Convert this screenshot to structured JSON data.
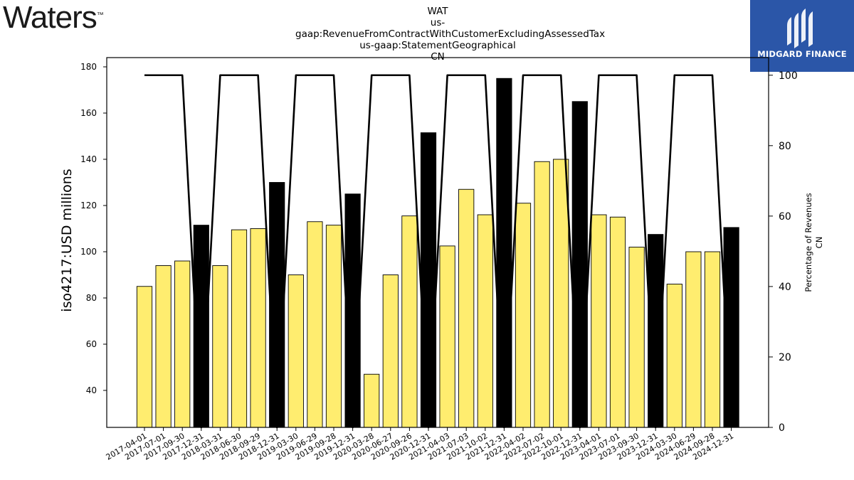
{
  "header": {
    "left_logo": "Waters",
    "left_logo_tm": "™",
    "title_lines": [
      "WAT",
      "us-gaap:RevenueFromContractWithCustomerExcludingAssessedTax",
      "us-gaap:StatementGeographical",
      "CN"
    ],
    "brand": "MIDGARD FINANCE",
    "brand_color": "#2b56a8"
  },
  "chart_data": {
    "type": "bar",
    "categories": [
      "2017-04-01",
      "2017-07-01",
      "2017-09-30",
      "2017-12-31",
      "2018-03-31",
      "2018-06-30",
      "2018-09-29",
      "2018-12-31",
      "2019-03-30",
      "2019-06-29",
      "2019-09-28",
      "2019-12-31",
      "2020-03-28",
      "2020-06-27",
      "2020-09-26",
      "2020-12-31",
      "2021-04-03",
      "2021-07-03",
      "2021-10-02",
      "2021-12-31",
      "2022-04-02",
      "2022-07-02",
      "2022-10-01",
      "2022-12-31",
      "2023-04-01",
      "2023-07-01",
      "2023-09-30",
      "2023-12-31",
      "2024-03-30",
      "2024-06-29",
      "2024-09-28",
      "2024-12-31"
    ],
    "values": [
      85,
      94,
      96,
      111.5,
      94,
      109.5,
      110,
      130,
      90,
      113,
      111.5,
      125,
      47,
      90,
      115.5,
      151.5,
      102.5,
      127,
      116,
      175,
      121,
      139,
      140,
      165,
      116,
      115,
      102,
      107.5,
      86,
      100,
      100,
      110.5
    ],
    "bar_colors": [
      "#ffed6f",
      "#ffed6f",
      "#ffed6f",
      "#000000",
      "#ffed6f",
      "#ffed6f",
      "#ffed6f",
      "#000000",
      "#ffed6f",
      "#ffed6f",
      "#ffed6f",
      "#000000",
      "#ffed6f",
      "#ffed6f",
      "#ffed6f",
      "#000000",
      "#ffed6f",
      "#ffed6f",
      "#ffed6f",
      "#000000",
      "#ffed6f",
      "#ffed6f",
      "#ffed6f",
      "#000000",
      "#ffed6f",
      "#ffed6f",
      "#ffed6f",
      "#000000",
      "#ffed6f",
      "#ffed6f",
      "#ffed6f",
      "#000000"
    ],
    "line_values": [
      100,
      100,
      100,
      0,
      100,
      100,
      100,
      0,
      100,
      100,
      100,
      0,
      100,
      100,
      100,
      0,
      100,
      100,
      100,
      0,
      100,
      100,
      100,
      0,
      100,
      100,
      100,
      0,
      100,
      100,
      100,
      0
    ],
    "ylabel": "iso4217:USD  millions",
    "y2label_lines": [
      "Percentage of Revenues",
      "CN"
    ],
    "ylim": [
      24,
      184
    ],
    "yticks": [
      40,
      60,
      80,
      100,
      120,
      140,
      160,
      180
    ],
    "y2lim": [
      0,
      105
    ],
    "y2ticks": [
      0,
      20,
      40,
      60,
      80,
      100
    ],
    "grid": false,
    "legend": "none"
  }
}
